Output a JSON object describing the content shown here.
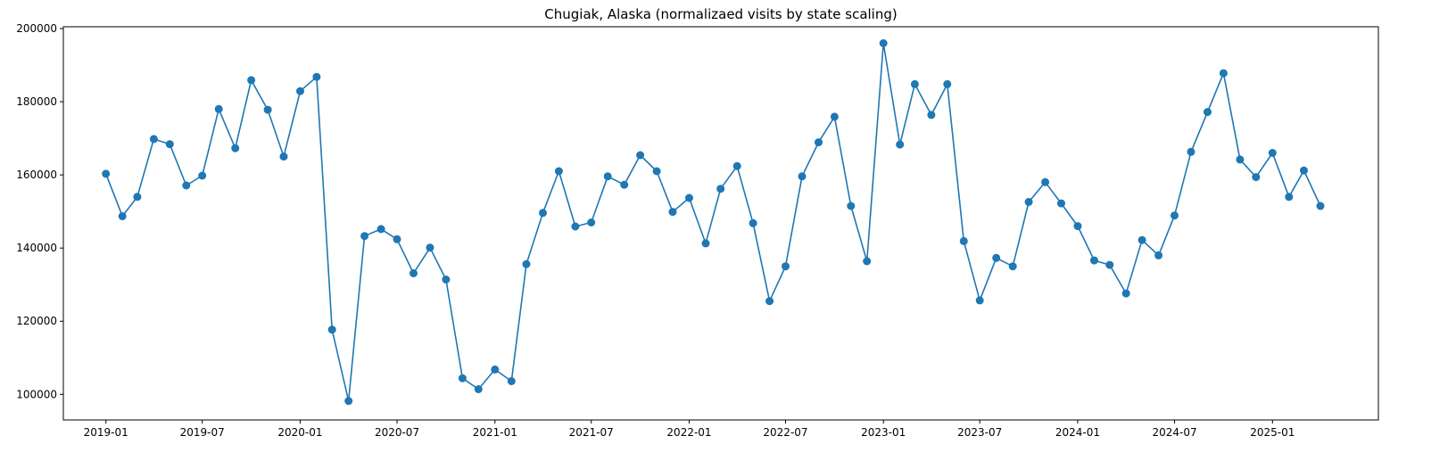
{
  "chart_data": {
    "type": "line",
    "title": "Chugiak, Alaska (normalizaed visits by state scaling)",
    "xlabel": "",
    "ylabel": "",
    "markers": true,
    "grid": false,
    "legend": "none",
    "color": "#1f77b4",
    "xlim": [
      "2018-10-13",
      "2025-07-19"
    ],
    "ylim": [
      93000,
      200500
    ],
    "x_ticks": [
      "2019-01",
      "2019-07",
      "2020-01",
      "2020-07",
      "2021-01",
      "2021-07",
      "2022-01",
      "2022-07",
      "2023-01",
      "2023-07",
      "2024-01",
      "2024-07",
      "2025-01"
    ],
    "y_ticks": [
      100000,
      120000,
      140000,
      160000,
      180000,
      200000
    ],
    "series": [
      {
        "x": [
          "2019-01",
          "2019-02",
          "2019-03",
          "2019-04",
          "2019-05",
          "2019-06",
          "2019-07",
          "2019-08",
          "2019-09",
          "2019-10",
          "2019-11",
          "2019-12",
          "2020-01",
          "2020-02",
          "2020-03",
          "2020-04",
          "2020-05",
          "2020-06",
          "2020-07",
          "2020-08",
          "2020-09",
          "2020-10",
          "2020-11",
          "2020-12",
          "2021-01",
          "2021-02",
          "2021-03",
          "2021-04",
          "2021-05",
          "2021-06",
          "2021-07",
          "2021-08",
          "2021-09",
          "2021-10",
          "2021-11",
          "2021-12",
          "2022-01",
          "2022-02",
          "2022-03",
          "2022-04",
          "2022-05",
          "2022-06",
          "2022-07",
          "2022-08",
          "2022-09",
          "2022-10",
          "2022-11",
          "2022-12",
          "2023-01",
          "2023-02",
          "2023-03",
          "2023-04",
          "2023-05",
          "2023-06",
          "2023-07",
          "2023-08",
          "2023-09",
          "2023-10",
          "2023-11",
          "2023-12",
          "2024-01",
          "2024-02",
          "2024-03",
          "2024-04",
          "2024-05",
          "2024-06",
          "2024-07",
          "2024-08",
          "2024-09",
          "2024-10",
          "2024-11",
          "2024-12",
          "2025-01",
          "2025-02",
          "2025-03",
          "2025-04"
        ],
        "values": [
          160300,
          148700,
          154000,
          169800,
          168400,
          157100,
          159800,
          178000,
          167300,
          185900,
          177800,
          165000,
          182900,
          186800,
          117700,
          98200,
          143300,
          145200,
          142400,
          133100,
          140100,
          131400,
          104400,
          101400,
          106800,
          103600,
          135600,
          149600,
          161000,
          145900,
          147000,
          159600,
          157300,
          165400,
          161000,
          149900,
          153700,
          141300,
          156200,
          162400,
          146800,
          125500,
          135000,
          159600,
          168900,
          175900,
          151500,
          136400,
          196000,
          168300,
          184800,
          176400,
          184800,
          141900,
          125700,
          137300,
          135000,
          152600,
          158000,
          152200,
          146000,
          136600,
          135400,
          127600,
          142200,
          138000,
          148900,
          166300,
          177200,
          187800,
          164200,
          159400,
          166000,
          154000,
          161200,
          151500
        ]
      }
    ]
  }
}
